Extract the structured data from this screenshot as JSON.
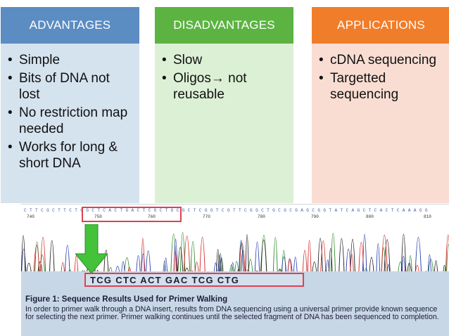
{
  "columns": {
    "advantages": {
      "header": "ADVANTAGES",
      "items": [
        "Simple",
        "Bits of DNA not lost",
        "No restriction map needed",
        "Works for long & short DNA"
      ]
    },
    "disadvantages": {
      "header": "DISADVANTAGES",
      "items": [
        "Slow",
        "Oligos→ not reusable"
      ]
    },
    "applications": {
      "header": "APPLICATIONS",
      "items": [
        "cDNA sequencing",
        "Targetted sequencing"
      ]
    }
  },
  "figure": {
    "sequence_top": "C T T C G C T T C T C G C T C A C T G A C T C G C T G C G C T C G G T C G T T C G G C T G C G C G A G C G G T A T C A G C T C A C T C A A A G G",
    "positions": [
      "740",
      "750",
      "760",
      "770",
      "780",
      "790",
      "800",
      "810"
    ],
    "result_sequence": "TCG CTC ACT GAC TCG CTG",
    "caption_title": "Figure 1: Sequence Results Used for Primer Walking",
    "caption_body": "In order to primer walk through a DNA insert, results from DNA sequencing using a universal primer provide known sequence for selecting the next primer. Primer walking continues until the selected fragment of DNA has been sequenced to completion.",
    "colors": {
      "trace_a": "#2b8a2b",
      "trace_c": "#2a3fb0",
      "trace_g": "#222222",
      "trace_t": "#d42a2a",
      "highlight": "#e04050",
      "arrow": "#44c23a"
    }
  }
}
